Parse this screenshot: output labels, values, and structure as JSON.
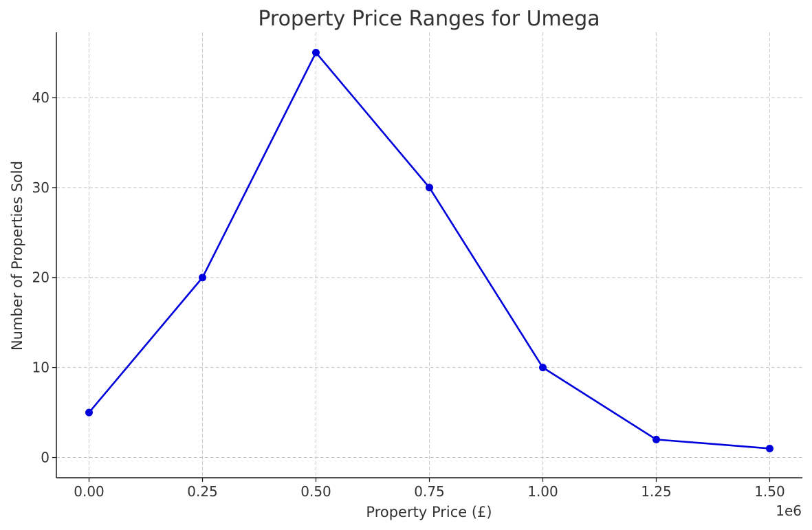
{
  "chart_data": {
    "type": "line",
    "title": "Property Price Ranges for Umega",
    "xlabel": "Property Price (£)",
    "ylabel": "Number of Properties Sold",
    "x_offset_label": "1e6",
    "x_tick_labels": [
      "0.00",
      "0.25",
      "0.50",
      "0.75",
      "1.00",
      "1.25",
      "1.50"
    ],
    "x_ticks": [
      0,
      250000,
      500000,
      750000,
      1000000,
      1250000,
      1500000
    ],
    "y_tick_labels": [
      "0",
      "10",
      "20",
      "30",
      "40"
    ],
    "y_ticks": [
      0,
      10,
      20,
      30,
      40
    ],
    "xlim": [
      -72000,
      1572000
    ],
    "ylim": [
      -2.25,
      47.25
    ],
    "grid": true,
    "series": [
      {
        "color": "#0000dd",
        "x": [
          0,
          250000,
          500000,
          750000,
          1000000,
          1250000,
          1500000
        ],
        "y": [
          5,
          20,
          45,
          30,
          10,
          2,
          1
        ]
      }
    ]
  }
}
